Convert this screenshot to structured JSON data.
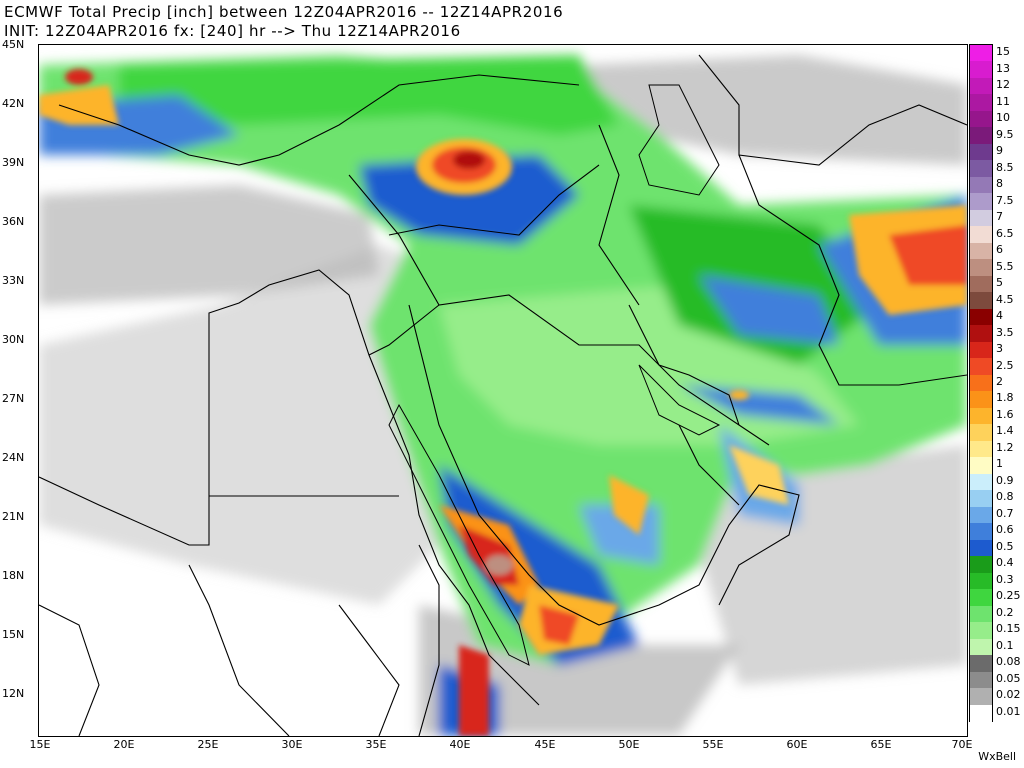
{
  "title": {
    "line1": "ECMWF Total Precip [inch] between 12Z04APR2016 -- 12Z14APR2016",
    "line2": "INIT: 12Z04APR2016 fx: [240] hr --> Thu 12Z14APR2016"
  },
  "map": {
    "lat_labels": [
      "45N",
      "42N",
      "39N",
      "36N",
      "33N",
      "30N",
      "27N",
      "24N",
      "21N",
      "18N",
      "15N",
      "12N"
    ],
    "lon_labels": [
      "15E",
      "20E",
      "25E",
      "30E",
      "35E",
      "40E",
      "45E",
      "50E",
      "55E",
      "60E",
      "65E",
      "70E"
    ],
    "lat_range": [
      10,
      45
    ],
    "lon_range": [
      15,
      70
    ]
  },
  "legend": {
    "entries": [
      {
        "label": "15",
        "color": "#ee1ee6"
      },
      {
        "label": "13",
        "color": "#d81ccf"
      },
      {
        "label": "12",
        "color": "#c21ab8"
      },
      {
        "label": "11",
        "color": "#ac18a2"
      },
      {
        "label": "10",
        "color": "#96168c"
      },
      {
        "label": "9.5",
        "color": "#7b1a7a"
      },
      {
        "label": "9",
        "color": "#6e3a8e"
      },
      {
        "label": "8.5",
        "color": "#7c5aa2"
      },
      {
        "label": "8",
        "color": "#9479b6"
      },
      {
        "label": "7.5",
        "color": "#ad9bcb"
      },
      {
        "label": "7",
        "color": "#d2cce0"
      },
      {
        "label": "6.5",
        "color": "#f2dcd4"
      },
      {
        "label": "6",
        "color": "#d8b3a6"
      },
      {
        "label": "5.5",
        "color": "#bd8f80"
      },
      {
        "label": "5",
        "color": "#a06c5d"
      },
      {
        "label": "4.5",
        "color": "#7d4a3d"
      },
      {
        "label": "4",
        "color": "#8a0000"
      },
      {
        "label": "3.5",
        "color": "#b01010"
      },
      {
        "label": "3",
        "color": "#d8261a"
      },
      {
        "label": "2.5",
        "color": "#ef4a25"
      },
      {
        "label": "2",
        "color": "#f8701a"
      },
      {
        "label": "1.8",
        "color": "#fb9218"
      },
      {
        "label": "1.6",
        "color": "#fdb42c"
      },
      {
        "label": "1.4",
        "color": "#fed25b"
      },
      {
        "label": "1.2",
        "color": "#ffe98a"
      },
      {
        "label": "1",
        "color": "#fffcc4"
      },
      {
        "label": "0.9",
        "color": "#cbeefb"
      },
      {
        "label": "0.8",
        "color": "#98cff2"
      },
      {
        "label": "0.7",
        "color": "#6aa8e8"
      },
      {
        "label": "0.6",
        "color": "#3f7fdb"
      },
      {
        "label": "0.5",
        "color": "#1d5bcf"
      },
      {
        "label": "0.4",
        "color": "#1a9c1a"
      },
      {
        "label": "0.3",
        "color": "#27bb27"
      },
      {
        "label": "0.25",
        "color": "#3fd63f"
      },
      {
        "label": "0.2",
        "color": "#6ee36e"
      },
      {
        "label": "0.15",
        "color": "#96ed8a"
      },
      {
        "label": "0.1",
        "color": "#bff5ad"
      },
      {
        "label": "0.08",
        "color": "#6b6b6b"
      },
      {
        "label": "0.05",
        "color": "#8c8c8c"
      },
      {
        "label": "0.02",
        "color": "#b0b0b0"
      },
      {
        "label": "0.01",
        "color": "#ffffff"
      }
    ]
  },
  "credit": "WxBell"
}
